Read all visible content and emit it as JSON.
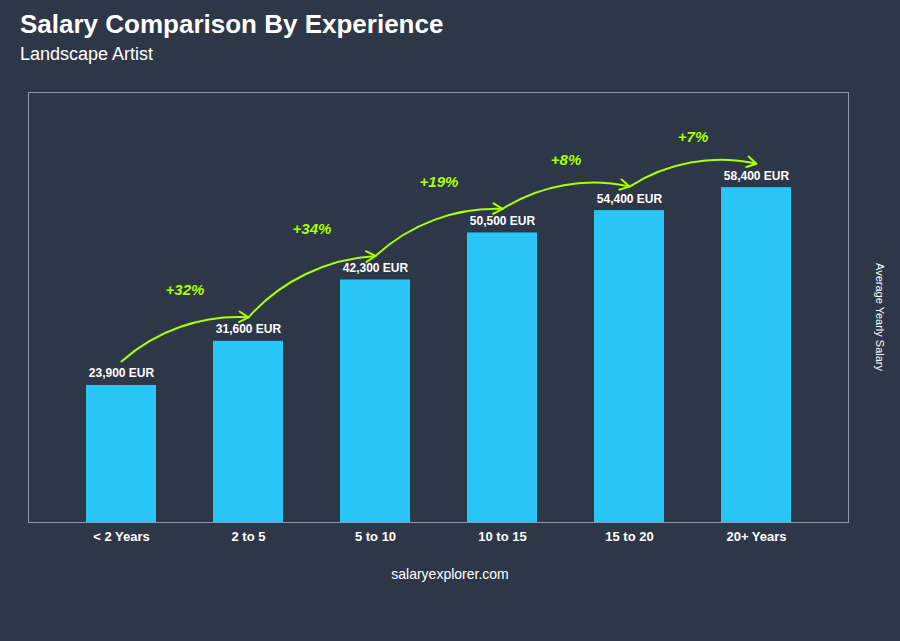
{
  "chart_data": {
    "type": "bar",
    "title": "Salary Comparison By Experience",
    "subtitle": "Landscape Artist",
    "caption": "salaryexplorer.com",
    "ylabel": "Average Yearly Salary",
    "categories": [
      "< 2 Years",
      "2 to 5",
      "5 to 10",
      "10 to 15",
      "15 to 20",
      "20+ Years"
    ],
    "values": [
      23900,
      31600,
      42300,
      50500,
      54400,
      58400
    ],
    "value_labels": [
      "23,900 EUR",
      "31,600 EUR",
      "42,300 EUR",
      "50,500 EUR",
      "54,400 EUR",
      "58,400 EUR"
    ],
    "data_labels": true,
    "color": "#29c5f6",
    "ylim": [
      0,
      75000
    ],
    "tick_labels": "x",
    "grid": false,
    "annotations": [
      {
        "text": "+32%",
        "color": "#aaff00"
      },
      {
        "text": "+34%",
        "color": "#aaff00"
      },
      {
        "text": "+19%",
        "color": "#aaff00"
      },
      {
        "text": "+8%",
        "color": "#aaff00"
      },
      {
        "text": "+7%",
        "color": "#aaff00"
      }
    ]
  }
}
